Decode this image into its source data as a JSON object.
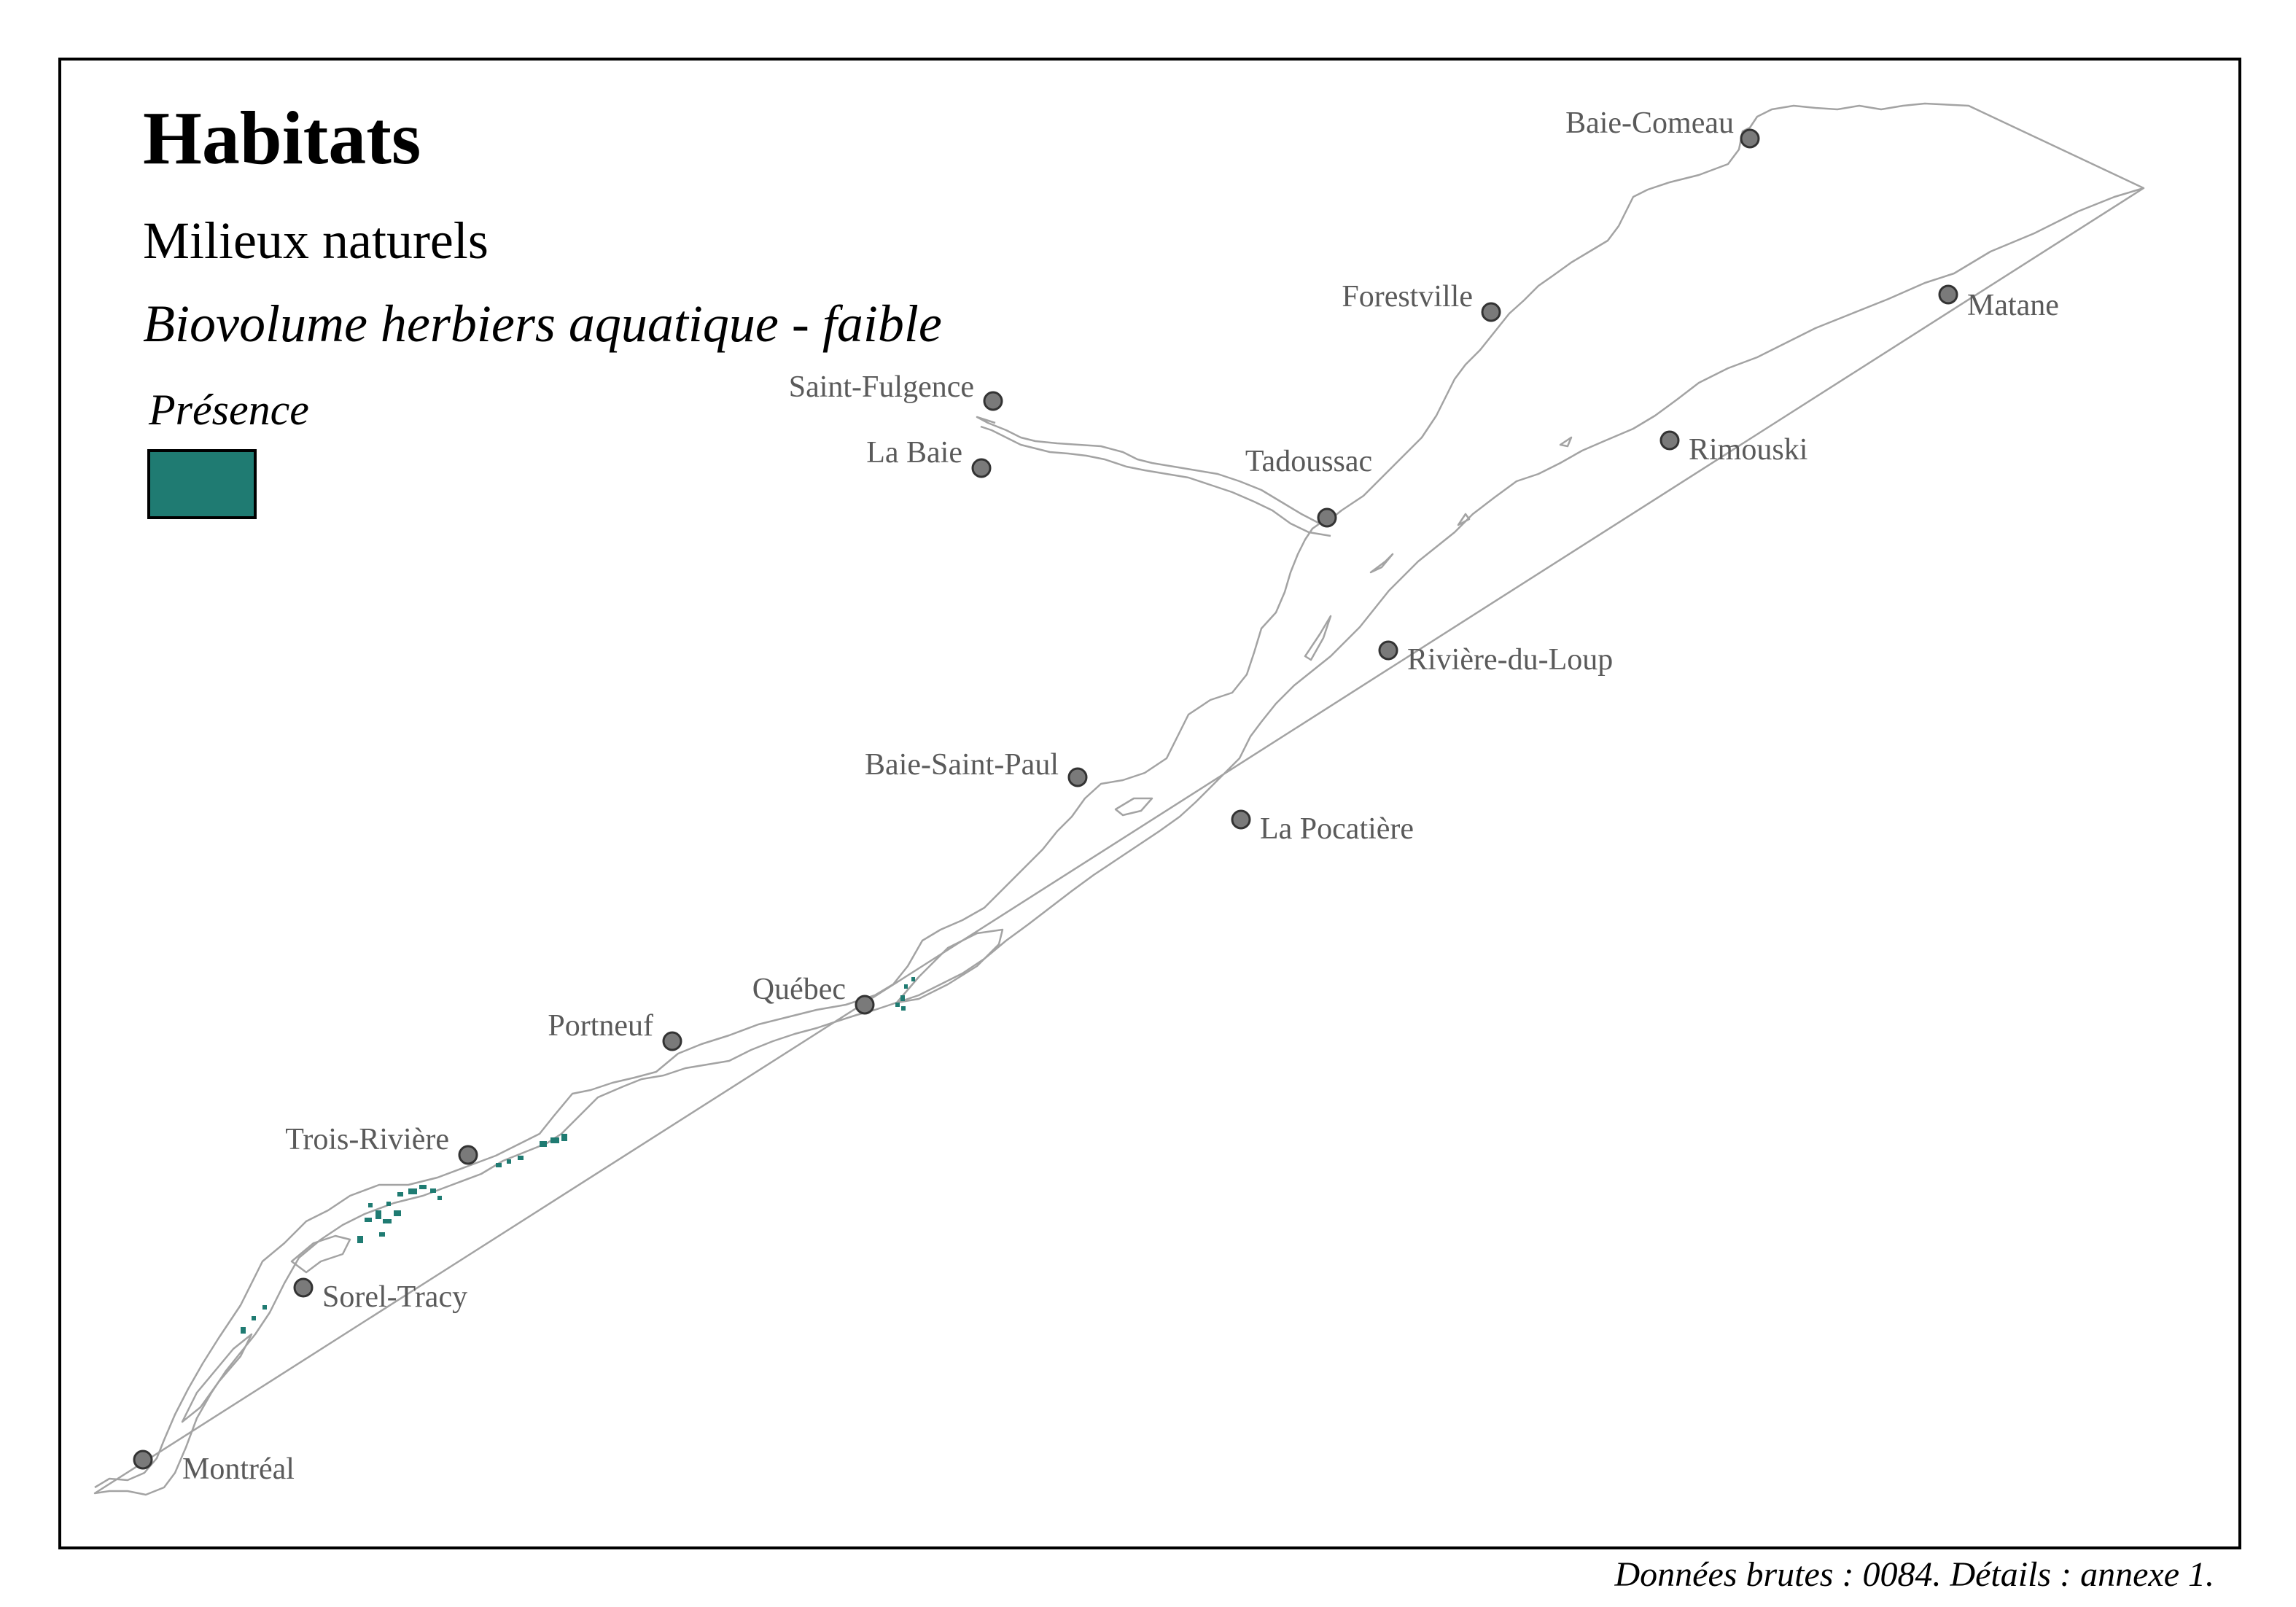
{
  "map": {
    "title": "Habitats",
    "subtitle": "Milieux naturels",
    "layer": "Biovolume herbiers aquatique - faible",
    "legend": {
      "title": "Présence",
      "color": "#1f7b72"
    },
    "footer": "Données brutes : 0084. Détails : annexe 1.",
    "colors": {
      "shoreline": "#a3a3a3",
      "city_marker": "#7a7a7a",
      "city_label": "#5a5a5a",
      "habitat": "#1f7b72"
    },
    "cities": [
      {
        "id": "baie-comeau",
        "name": "Baie-Comeau"
      },
      {
        "id": "forestville",
        "name": "Forestville"
      },
      {
        "id": "matane",
        "name": "Matane"
      },
      {
        "id": "saint-fulgence",
        "name": "Saint-Fulgence"
      },
      {
        "id": "la-baie",
        "name": "La Baie"
      },
      {
        "id": "tadoussac",
        "name": "Tadoussac"
      },
      {
        "id": "rimouski",
        "name": "Rimouski"
      },
      {
        "id": "riviere-du-loup",
        "name": "Rivière-du-Loup"
      },
      {
        "id": "baie-saint-paul",
        "name": "Baie-Saint-Paul"
      },
      {
        "id": "la-pocatiere",
        "name": "La Pocatière"
      },
      {
        "id": "quebec",
        "name": "Québec"
      },
      {
        "id": "portneuf",
        "name": "Portneuf"
      },
      {
        "id": "trois-rivieres",
        "name": "Trois-Rivière"
      },
      {
        "id": "sorel-tracy",
        "name": "Sorel-Tracy"
      },
      {
        "id": "montreal",
        "name": "Montréal"
      }
    ]
  }
}
